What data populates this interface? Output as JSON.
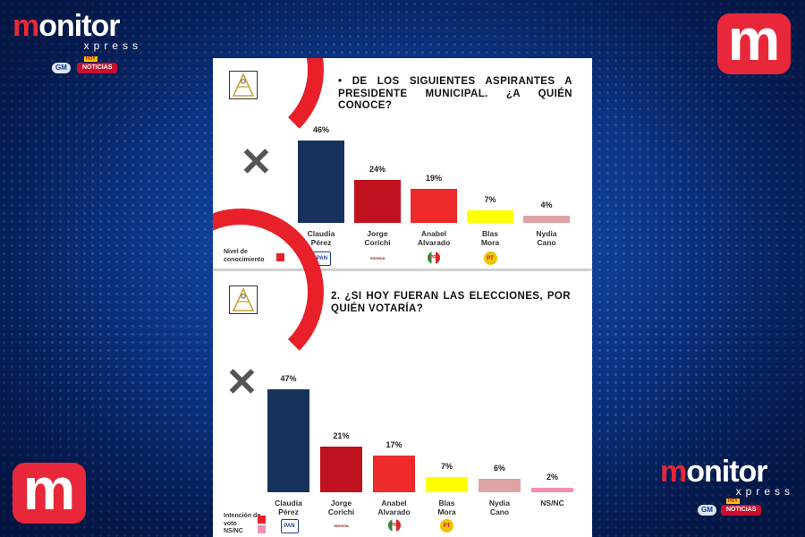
{
  "brand": {
    "name_m": "m",
    "name_rest": "onitor",
    "sub": "xpress",
    "gm": "GM",
    "noticias": "NOTICIAS",
    "hoy": "HOY",
    "icon_letter": "m",
    "accent": "#e8283a"
  },
  "chart_data": [
    {
      "type": "bar",
      "title": "DE LOS SIGUIENTES ASPIRANTES A PRESIDENTE MUNICIPAL. ¿A QUIÉN CONOCE?",
      "title_bullet": "•",
      "categories": [
        "Claudia Pérez",
        "Jorge Corichi",
        "Anabel Alvarado",
        "Blas Mora",
        "Nydia Cano"
      ],
      "values": [
        46,
        24,
        19,
        7,
        4
      ],
      "value_labels": [
        "46%",
        "24%",
        "19%",
        "7%",
        "4%"
      ],
      "colors": [
        "#17335c",
        "#c1121f",
        "#ee2a2a",
        "#ffff00",
        "#e0a3a3"
      ],
      "parties": [
        "PAN",
        "morena",
        "PRI",
        "PT",
        ""
      ],
      "legend": [
        {
          "label": "Nivel de conocimiento",
          "color": "#e8202a"
        }
      ],
      "ylim": [
        0,
        50
      ]
    },
    {
      "type": "bar",
      "title": "2. ¿SI HOY FUERAN LAS ELECCIONES, POR QUIÉN VOTARÍA?",
      "categories": [
        "Claudia Pérez",
        "Jorge Corichi",
        "Anabel Alvarado",
        "Blas Mora",
        "Nydia Cano",
        "NS/NC"
      ],
      "values": [
        47,
        21,
        17,
        7,
        6,
        2
      ],
      "value_labels": [
        "47%",
        "21%",
        "17%",
        "7%",
        "6%",
        "2%"
      ],
      "colors": [
        "#17335c",
        "#c1121f",
        "#ee2a2a",
        "#ffff00",
        "#e0a3a3",
        "#f78fb3"
      ],
      "parties": [
        "PAN",
        "morena",
        "PRI",
        "PT",
        "",
        ""
      ],
      "legend": [
        {
          "label": "Intención de voto",
          "color": "#e8202a"
        },
        {
          "label": "NS/NC",
          "color": "#f78fb3"
        }
      ],
      "ylim": [
        0,
        50
      ]
    }
  ]
}
